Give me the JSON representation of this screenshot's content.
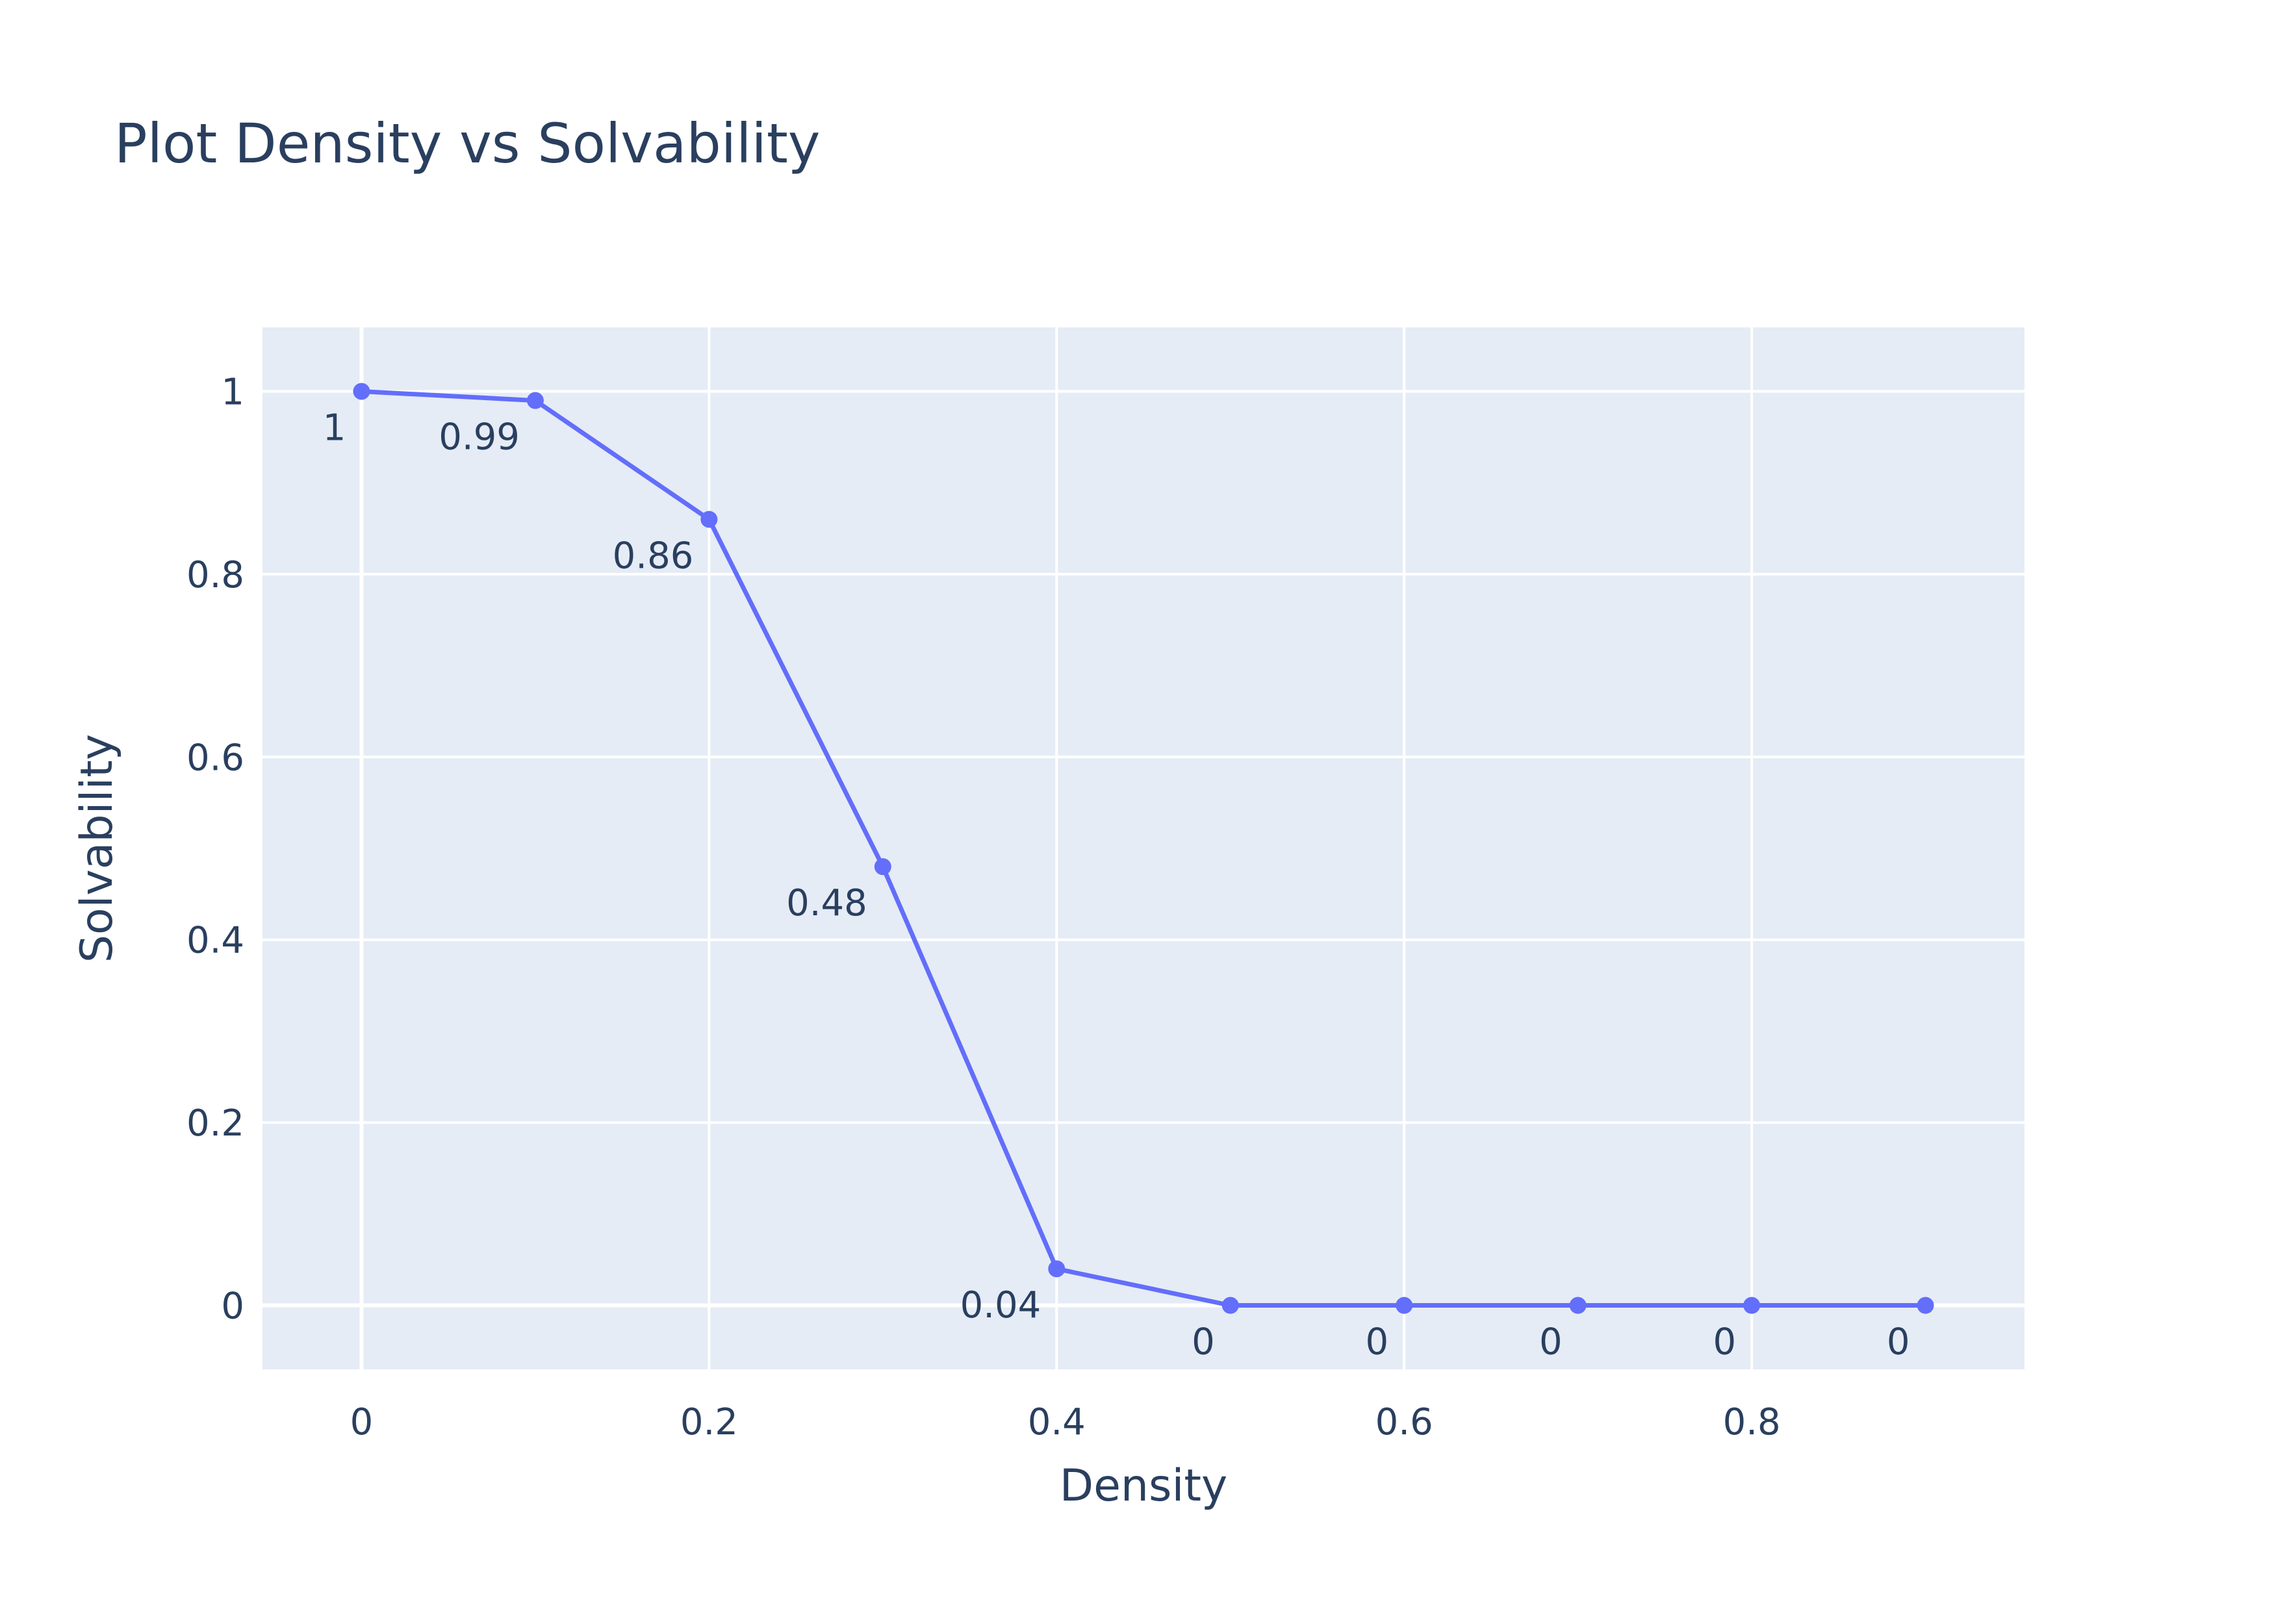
{
  "chart_data": {
    "type": "line",
    "title": "Plot Density vs Solvability",
    "xlabel": "Density",
    "ylabel": "Solvability",
    "x": [
      0,
      0.1,
      0.2,
      0.3,
      0.4,
      0.5,
      0.6,
      0.7,
      0.8,
      0.9
    ],
    "series": [
      {
        "values": [
          1,
          0.99,
          0.86,
          0.48,
          0.04,
          0,
          0,
          0,
          0,
          0
        ],
        "labels": [
          "1",
          "0.99",
          "0.86",
          "0.48",
          "0.04",
          "0",
          "0",
          "0",
          "0",
          "0"
        ],
        "color": "#636efa"
      }
    ],
    "xlim": [
      -0.057,
      0.957
    ],
    "ylim": [
      -0.07,
      1.07
    ],
    "x_ticks": [
      0,
      0.2,
      0.4,
      0.6,
      0.8
    ],
    "x_tick_labels": [
      "0",
      "0.2",
      "0.4",
      "0.6",
      "0.8"
    ],
    "y_ticks": [
      0,
      0.2,
      0.4,
      0.6,
      0.8,
      1
    ],
    "y_tick_labels": [
      "0",
      "0.2",
      "0.4",
      "0.6",
      "0.8",
      "1"
    ],
    "grid": true,
    "legend": "none",
    "colors": {
      "plot_background": "#e5ecf6",
      "grid": "#ffffff",
      "text": "#2a3f5f",
      "line": "#636efa"
    }
  }
}
